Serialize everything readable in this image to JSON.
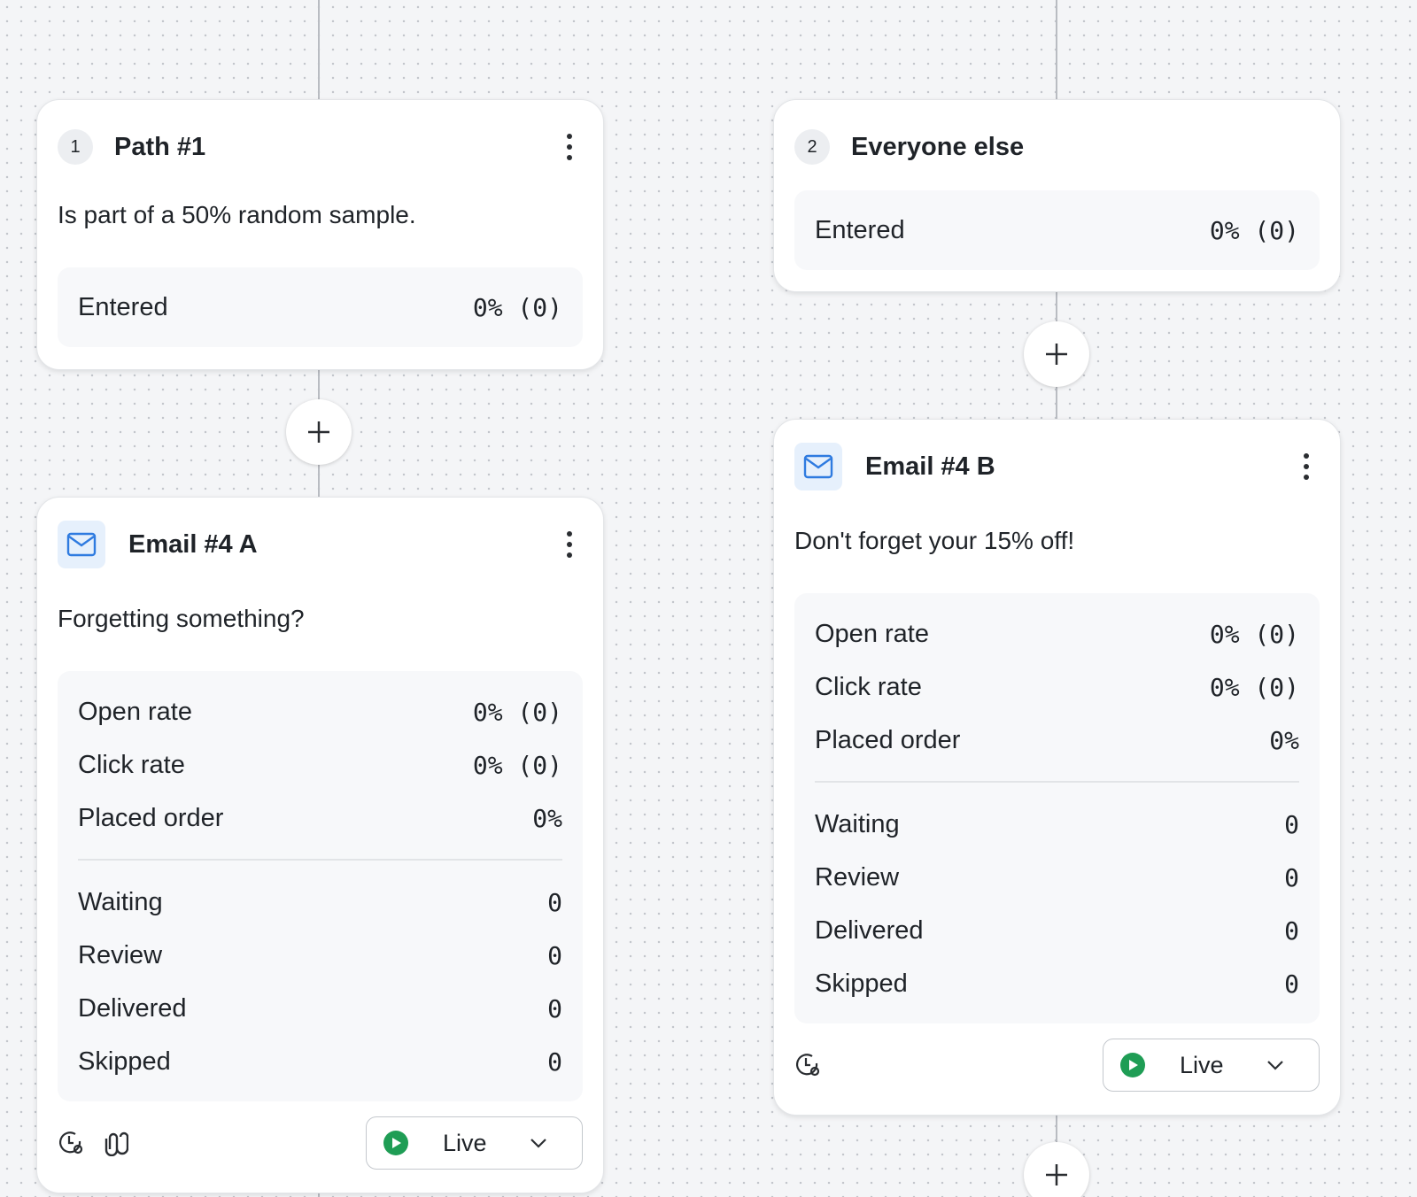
{
  "paths": [
    {
      "number": "1",
      "title": "Path #1",
      "description": "Is part of a 50% random sample.",
      "stats": [
        {
          "label": "Entered",
          "value": "0% (0)"
        }
      ]
    },
    {
      "number": "2",
      "title": "Everyone else",
      "stats": [
        {
          "label": "Entered",
          "value": "0% (0)"
        }
      ]
    }
  ],
  "emails": [
    {
      "title": "Email #4 A",
      "subject": "Forgetting something?",
      "rates": [
        {
          "label": "Open rate",
          "value": "0% (0)"
        },
        {
          "label": "Click rate",
          "value": "0% (0)"
        },
        {
          "label": "Placed order",
          "value": "0%"
        }
      ],
      "counts": [
        {
          "label": "Waiting",
          "value": "0"
        },
        {
          "label": "Review",
          "value": "0"
        },
        {
          "label": "Delivered",
          "value": "0"
        },
        {
          "label": "Skipped",
          "value": "0"
        }
      ],
      "status": "Live"
    },
    {
      "title": "Email #4 B",
      "subject": "Don't forget your 15% off!",
      "rates": [
        {
          "label": "Open rate",
          "value": "0% (0)"
        },
        {
          "label": "Click rate",
          "value": "0% (0)"
        },
        {
          "label": "Placed order",
          "value": "0%"
        }
      ],
      "counts": [
        {
          "label": "Waiting",
          "value": "0"
        },
        {
          "label": "Review",
          "value": "0"
        },
        {
          "label": "Delivered",
          "value": "0"
        },
        {
          "label": "Skipped",
          "value": "0"
        }
      ],
      "status": "Live"
    }
  ]
}
